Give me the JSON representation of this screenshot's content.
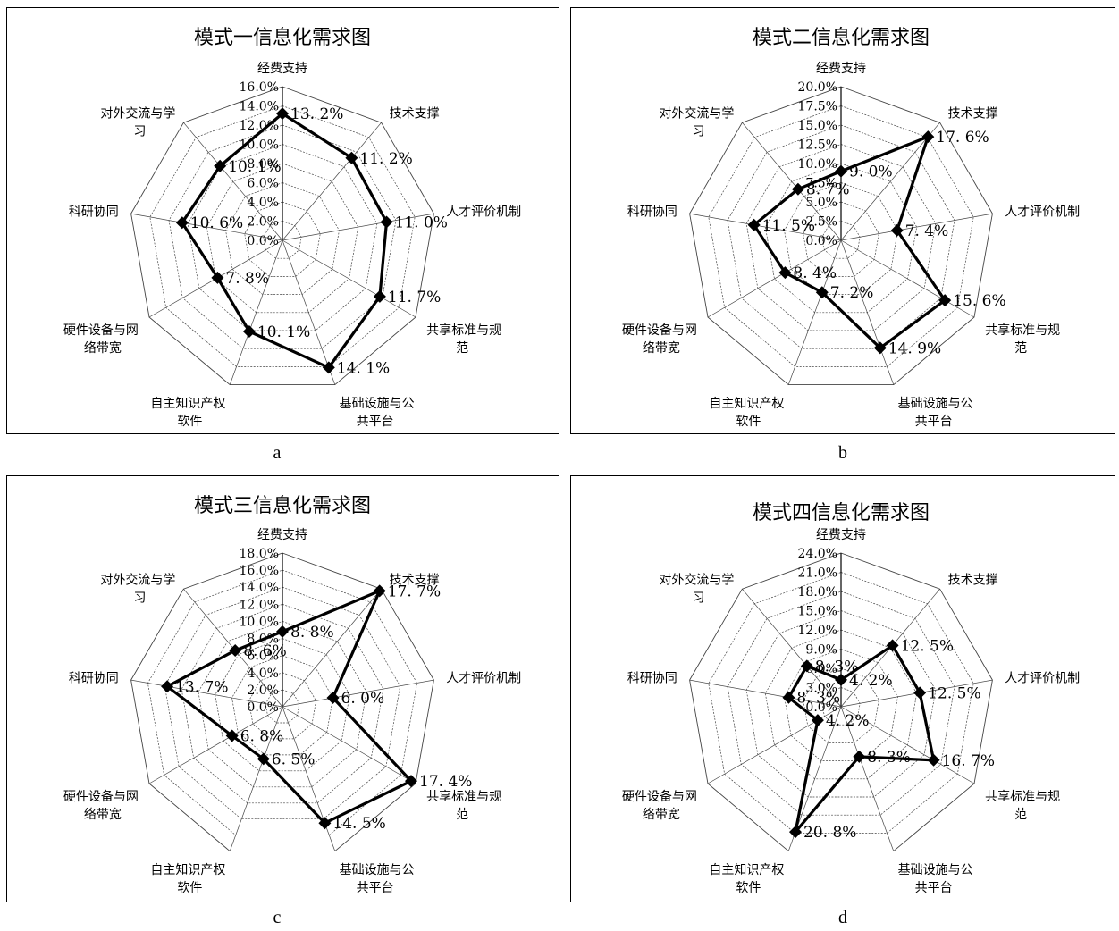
{
  "captions": [
    "a",
    "b",
    "c",
    "d"
  ],
  "chart_data": [
    {
      "type": "radar",
      "title": "模式一信息化需求图",
      "categories": [
        [
          "经费支持"
        ],
        [
          "技术支撑"
        ],
        [
          "人才评价机制"
        ],
        [
          "共享标准与规",
          "范"
        ],
        [
          "基础设施与公",
          "共平台"
        ],
        [
          "自主知识产权",
          "软件"
        ],
        [
          "硬件设备与网",
          "络带宽"
        ],
        [
          "科研协同"
        ],
        [
          "对外交流与学",
          "习"
        ]
      ],
      "ticks": [
        "0.0%",
        "2.0%",
        "4.0%",
        "6.0%",
        "8.0%",
        "10.0%",
        "12.0%",
        "14.0%",
        "16.0%"
      ],
      "rmax": 16,
      "values": [
        13.2,
        11.2,
        11.0,
        11.7,
        14.1,
        10.1,
        7.8,
        10.6,
        10.1
      ],
      "labels": [
        "13. 2%",
        "11. 2%",
        "11. 0%",
        "11. 7%",
        "14. 1%",
        "10. 1%",
        "7. 8%",
        "10. 6%",
        "10. 1%"
      ]
    },
    {
      "type": "radar",
      "title": "模式二信息化需求图",
      "categories": [
        [
          "经费支持"
        ],
        [
          "技术支撑"
        ],
        [
          "人才评价机制"
        ],
        [
          "共享标准与规",
          "范"
        ],
        [
          "基础设施与公",
          "共平台"
        ],
        [
          "自主知识产权",
          "软件"
        ],
        [
          "硬件设备与网",
          "络带宽"
        ],
        [
          "科研协同"
        ],
        [
          "对外交流与学",
          "习"
        ]
      ],
      "ticks": [
        "0.0%",
        "2.5%",
        "5.0%",
        "7.5%",
        "10.0%",
        "12.5%",
        "15.0%",
        "17.5%",
        "20.0%"
      ],
      "rmax": 20,
      "values": [
        9.0,
        17.6,
        7.4,
        15.6,
        14.9,
        7.2,
        8.4,
        11.5,
        8.7
      ],
      "labels": [
        "9. 0%",
        "17. 6%",
        "7. 4%",
        "15. 6%",
        "14. 9%",
        "7. 2%",
        "8. 4%",
        "11. 5%",
        "8. 7%"
      ]
    },
    {
      "type": "radar",
      "title": "模式三信息化需求图",
      "categories": [
        [
          "经费支持"
        ],
        [
          "技术支撑"
        ],
        [
          "人才评价机制"
        ],
        [
          "共享标准与规",
          "范"
        ],
        [
          "基础设施与公",
          "共平台"
        ],
        [
          "自主知识产权",
          "软件"
        ],
        [
          "硬件设备与网",
          "络带宽"
        ],
        [
          "科研协同"
        ],
        [
          "对外交流与学",
          "习"
        ]
      ],
      "ticks": [
        "0.0%",
        "2.0%",
        "4.0%",
        "6.0%",
        "8.0%",
        "10.0%",
        "12.0%",
        "14.0%",
        "16.0%",
        "18.0%"
      ],
      "rmax": 18,
      "values": [
        8.8,
        17.7,
        6.0,
        17.4,
        14.5,
        6.5,
        6.8,
        13.7,
        8.6
      ],
      "labels": [
        "8. 8%",
        "17. 7%",
        "6. 0%",
        "17. 4%",
        "14. 5%",
        "6. 5%",
        "6. 8%",
        "13. 7%",
        "8. 6%"
      ]
    },
    {
      "type": "radar",
      "title": "模式四信息化需求图",
      "categories": [
        [
          "经费支持"
        ],
        [
          "技术支撑"
        ],
        [
          "人才评价机制"
        ],
        [
          "共享标准与规",
          "范"
        ],
        [
          "基础设施与公",
          "共平台"
        ],
        [
          "自主知识产权",
          "软件"
        ],
        [
          "硬件设备与网",
          "络带宽"
        ],
        [
          "科研协同"
        ],
        [
          "对外交流与学",
          "习"
        ]
      ],
      "ticks": [
        "0.0%",
        "3.0%",
        "6.0%",
        "9.0%",
        "12.0%",
        "15.0%",
        "18.0%",
        "21.0%",
        "24.0%"
      ],
      "rmax": 24,
      "values": [
        4.2,
        12.5,
        12.5,
        16.7,
        8.3,
        20.8,
        4.2,
        8.3,
        8.3
      ],
      "labels": [
        "4. 2%",
        "12. 5%",
        "12. 5%",
        "16. 7%",
        "8. 3%",
        "20. 8%",
        "4. 2%",
        "8. 3%",
        "8. 3%"
      ]
    }
  ]
}
